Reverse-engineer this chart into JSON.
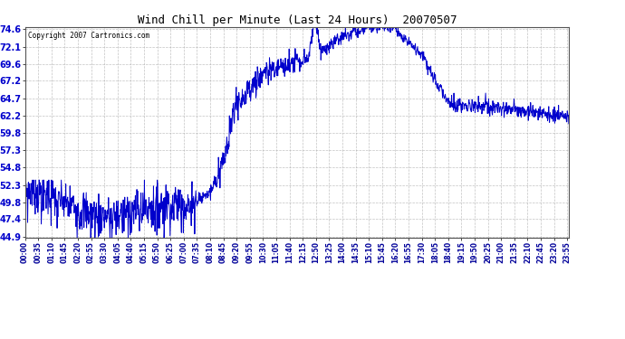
{
  "title": "Wind Chill per Minute (Last 24 Hours)  20070507",
  "copyright": "Copyright 2007 Cartronics.com",
  "line_color": "#0000CC",
  "background_color": "#ffffff",
  "plot_bg_color": "#ffffff",
  "grid_color": "#aaaaaa",
  "yticks": [
    44.9,
    47.4,
    49.8,
    52.3,
    54.8,
    57.3,
    59.8,
    62.2,
    64.7,
    67.2,
    69.6,
    72.1,
    74.6
  ],
  "ymin": 44.9,
  "ymax": 74.6,
  "xlabel_color": "#000099",
  "title_color": "#000000",
  "tick_label_color": "#0000CC",
  "x_tick_labels": [
    "00:00",
    "00:35",
    "01:10",
    "01:45",
    "02:20",
    "02:55",
    "03:30",
    "04:05",
    "04:40",
    "05:15",
    "05:50",
    "06:25",
    "07:00",
    "07:35",
    "08:10",
    "08:45",
    "09:20",
    "09:55",
    "10:30",
    "11:05",
    "11:40",
    "12:15",
    "12:50",
    "13:25",
    "14:00",
    "14:35",
    "15:10",
    "15:45",
    "16:20",
    "16:55",
    "17:30",
    "18:05",
    "18:40",
    "19:15",
    "19:50",
    "20:25",
    "21:00",
    "21:35",
    "22:10",
    "22:45",
    "23:20",
    "23:55"
  ]
}
